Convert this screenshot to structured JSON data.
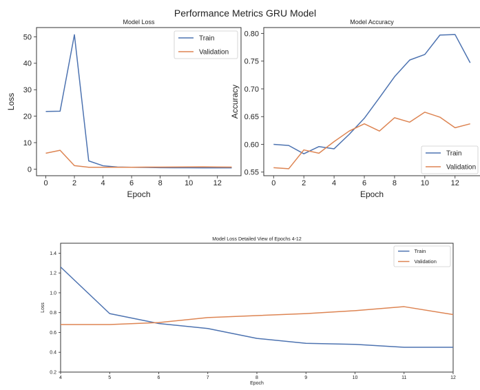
{
  "figure": {
    "suptitle": "Performance Metrics GRU Model"
  },
  "colors": {
    "train": "#4c72b0",
    "validation": "#dd8452",
    "axis": "#262626",
    "frame": "#333333",
    "background": "#ffffff"
  },
  "chart_data": [
    {
      "id": "loss",
      "type": "line",
      "title": "Model Loss",
      "xlabel": "Epoch",
      "ylabel": "Loss",
      "xlim": [
        -0.65,
        13.65
      ],
      "ylim": [
        -2.5,
        53.5
      ],
      "xticks": [
        0,
        2,
        4,
        6,
        8,
        10,
        12
      ],
      "yticks": [
        0,
        10,
        20,
        30,
        40,
        50
      ],
      "grid": false,
      "legend_position": "upper-right",
      "x": [
        0,
        1,
        2,
        3,
        4,
        5,
        6,
        7,
        8,
        9,
        10,
        11,
        12,
        13
      ],
      "series": [
        {
          "name": "Train",
          "color": "#4c72b0",
          "values": [
            21.8,
            21.9,
            50.8,
            3.1,
            1.26,
            0.79,
            0.69,
            0.64,
            0.54,
            0.49,
            0.48,
            0.45,
            0.45,
            0.45
          ]
        },
        {
          "name": "Validation",
          "color": "#dd8452",
          "values": [
            6.0,
            7.1,
            1.3,
            0.7,
            0.68,
            0.68,
            0.7,
            0.75,
            0.77,
            0.79,
            0.82,
            0.86,
            0.78,
            0.75
          ]
        }
      ]
    },
    {
      "id": "accuracy",
      "type": "line",
      "title": "Model Accuracy",
      "xlabel": "Epoch",
      "ylabel": "Accuracy",
      "xlim": [
        -0.65,
        13.65
      ],
      "ylim": [
        0.5435,
        0.8105
      ],
      "xticks": [
        0,
        2,
        4,
        6,
        8,
        10,
        12
      ],
      "yticks": [
        0.55,
        0.6,
        0.65,
        0.7,
        0.75,
        0.8
      ],
      "ytick_labels": [
        "0.55",
        "0.60",
        "0.65",
        "0.70",
        "0.75",
        "0.80"
      ],
      "grid": false,
      "legend_position": "lower-right",
      "x": [
        0,
        1,
        2,
        3,
        4,
        5,
        6,
        7,
        8,
        9,
        10,
        11,
        12,
        13
      ],
      "series": [
        {
          "name": "Train",
          "color": "#4c72b0",
          "values": [
            0.6,
            0.598,
            0.583,
            0.596,
            0.592,
            0.618,
            0.647,
            0.684,
            0.722,
            0.752,
            0.762,
            0.797,
            0.798,
            0.747
          ]
        },
        {
          "name": "Validation",
          "color": "#dd8452",
          "values": [
            0.558,
            0.556,
            0.59,
            0.584,
            0.605,
            0.624,
            0.637,
            0.624,
            0.648,
            0.64,
            0.658,
            0.649,
            0.63,
            0.637
          ]
        }
      ]
    },
    {
      "id": "loss-detail",
      "type": "line",
      "title": "Model Loss Detailed View of Epochs 4-12",
      "xlabel": "Epoch",
      "ylabel": "Loss",
      "xlim": [
        4,
        12
      ],
      "ylim": [
        0.2,
        1.5
      ],
      "xticks": [
        4,
        5,
        6,
        7,
        8,
        9,
        10,
        11,
        12
      ],
      "yticks": [
        0.2,
        0.4,
        0.6,
        0.8,
        1.0,
        1.2,
        1.4
      ],
      "ytick_labels": [
        "0.2",
        "0.4",
        "0.6",
        "0.8",
        "1.0",
        "1.2",
        "1.4"
      ],
      "grid": false,
      "legend_position": "upper-right",
      "x": [
        4,
        5,
        6,
        7,
        8,
        9,
        10,
        11,
        12
      ],
      "series": [
        {
          "name": "Train",
          "color": "#4c72b0",
          "values": [
            1.26,
            0.79,
            0.69,
            0.64,
            0.54,
            0.49,
            0.48,
            0.45,
            0.45
          ]
        },
        {
          "name": "Validation",
          "color": "#dd8452",
          "values": [
            0.68,
            0.68,
            0.7,
            0.75,
            0.77,
            0.79,
            0.82,
            0.86,
            0.78
          ]
        }
      ]
    }
  ]
}
